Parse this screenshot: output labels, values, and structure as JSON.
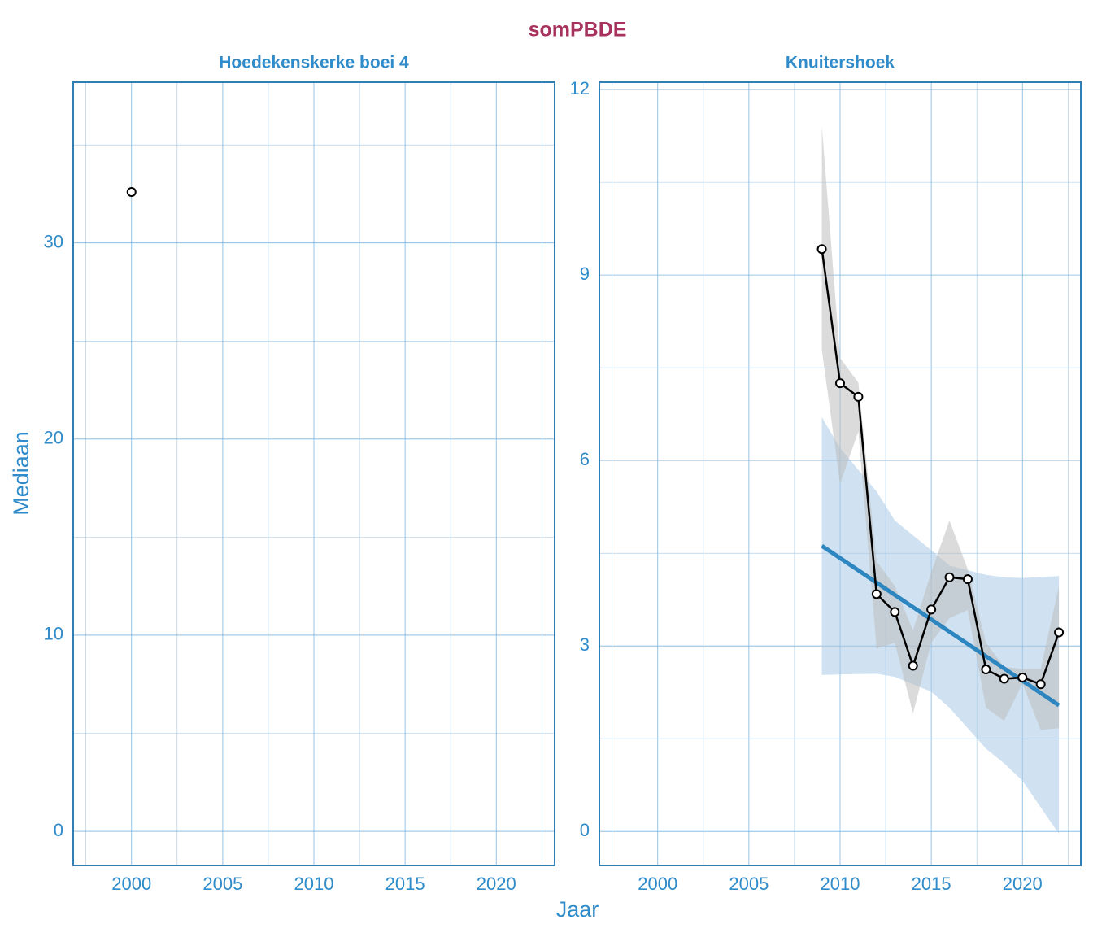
{
  "title": "somPBDE",
  "xlabel": "Jaar",
  "ylabel": "Mediaan",
  "chart_data": [
    {
      "type": "scatter",
      "title": "Hoedekenskerke boei 4",
      "x": [
        2000
      ],
      "values": [
        32.6
      ],
      "color": "#000000",
      "xlim": [
        1996.8,
        2023.2
      ],
      "xticks": [
        2000,
        2005,
        2010,
        2015,
        2020
      ],
      "xminor": [
        1997.5,
        2002.5,
        2007.5,
        2012.5,
        2017.5,
        2022.5
      ],
      "ylim": [
        -1.74,
        38.2
      ],
      "yticks": [
        0,
        10,
        20,
        30
      ],
      "yminor": [
        5,
        15,
        25,
        35
      ],
      "grid": true
    },
    {
      "type": "line",
      "title": "Knuitershoek",
      "x": [
        2009,
        2010,
        2011,
        2012,
        2013,
        2014,
        2015,
        2016,
        2017,
        2018,
        2019,
        2020,
        2021,
        2022
      ],
      "values": [
        9.42,
        7.25,
        7.03,
        3.84,
        3.55,
        2.68,
        3.59,
        4.11,
        4.08,
        2.62,
        2.47,
        2.49,
        2.38,
        3.22
      ],
      "color": "#000000",
      "ribbon": {
        "color": "#bdbdbd",
        "lower": [
          7.79,
          5.62,
          6.47,
          2.96,
          3.05,
          1.91,
          3.05,
          3.45,
          3.58,
          2.0,
          1.79,
          2.39,
          1.64,
          1.67
        ],
        "upper": [
          11.41,
          7.66,
          7.26,
          4.37,
          3.97,
          3.25,
          4.2,
          5.03,
          4.24,
          3.05,
          2.66,
          2.63,
          2.63,
          3.97
        ]
      },
      "trend": {
        "color": "#2e86c1",
        "x": [
          2009,
          2022
        ],
        "values": [
          4.62,
          2.04
        ]
      },
      "trend_band": {
        "color": "#a9cbe8",
        "x": [
          2009,
          2010,
          2012,
          2013,
          2015,
          2016,
          2018,
          2019,
          2020,
          2022
        ],
        "lower": [
          2.53,
          2.54,
          2.55,
          2.5,
          2.26,
          2.0,
          1.34,
          1.1,
          0.82,
          -0.04
        ],
        "upper": [
          6.7,
          6.2,
          5.5,
          5.03,
          4.55,
          4.3,
          4.15,
          4.11,
          4.1,
          4.13
        ]
      },
      "xlim": [
        1996.8,
        2023.2
      ],
      "xticks": [
        2000,
        2005,
        2010,
        2015,
        2020
      ],
      "xminor": [
        1997.5,
        2002.5,
        2007.5,
        2012.5,
        2017.5,
        2022.5
      ],
      "ylim": [
        -0.55,
        12.12
      ],
      "yticks": [
        0,
        3,
        6,
        9,
        12
      ],
      "yminor": [
        1.5,
        4.5,
        7.5,
        10.5
      ],
      "grid": true
    }
  ]
}
